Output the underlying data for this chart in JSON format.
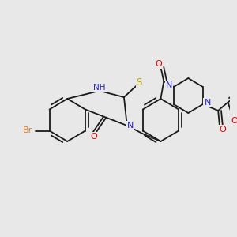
{
  "background_color": "#e8e8e8",
  "bond_color": "#1a1a1a",
  "bond_width": 1.3,
  "figsize": [
    3.0,
    3.0
  ],
  "dpi": 100,
  "atoms": {
    "Br": {
      "color": "#cd7f32"
    },
    "O": {
      "color": "#dd0000"
    },
    "N": {
      "color": "#2222cc"
    },
    "NH": {
      "color": "#2222cc"
    },
    "S": {
      "color": "#b8a800"
    }
  }
}
